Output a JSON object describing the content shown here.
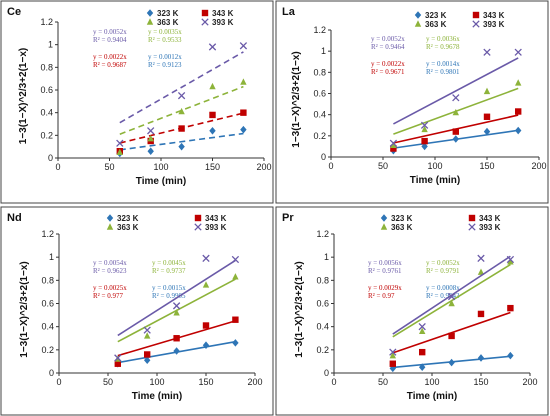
{
  "chart_data": [
    {
      "type": "scatter",
      "title": "Ce",
      "xlabel": "Time (min)",
      "ylabel": "1−3(1−X)^2/3+2(1−x)",
      "xlim": [
        0,
        200
      ],
      "ylim": [
        0,
        1.2
      ],
      "xticks": [
        "0",
        "50",
        "100",
        "150",
        "200"
      ],
      "yticks": [
        "0",
        "0.2",
        "0.4",
        "0.6",
        "0.8",
        "1",
        "1.2"
      ],
      "trendline_style": "dashed",
      "series": [
        {
          "name": "323 K",
          "color": "#2e75b6",
          "marker": "diamond",
          "x": [
            60,
            90,
            120,
            150,
            180
          ],
          "y": [
            0.04,
            0.06,
            0.1,
            0.24,
            0.25
          ],
          "equation": "y = 0.0012x",
          "r2": "R² = 0.9123"
        },
        {
          "name": "343 K",
          "color": "#c00000",
          "marker": "square",
          "x": [
            60,
            90,
            120,
            150,
            180
          ],
          "y": [
            0.06,
            0.15,
            0.26,
            0.38,
            0.4
          ],
          "equation": "y = 0.0022x",
          "r2": "R² = 0.9687"
        },
        {
          "name": "363 K",
          "color": "#8db33a",
          "marker": "triangle",
          "x": [
            60,
            90,
            120,
            150,
            180
          ],
          "y": [
            0.05,
            0.17,
            0.41,
            0.63,
            0.67
          ],
          "equation": "y = 0.0035x",
          "r2": "R² = 0.9533"
        },
        {
          "name": "393 K",
          "color": "#6a5aa8",
          "marker": "x",
          "x": [
            60,
            90,
            120,
            150,
            180
          ],
          "y": [
            0.13,
            0.24,
            0.55,
            0.98,
            0.99
          ],
          "equation": "y = 0.0052x",
          "r2": "R² = 0.9404"
        }
      ]
    },
    {
      "type": "scatter",
      "title": "La",
      "xlabel": "Time (min)",
      "ylabel": "1−3(1−X)^2/3+2(1−x)",
      "xlim": [
        0,
        200
      ],
      "ylim": [
        0,
        1.2
      ],
      "xticks": [
        "0",
        "50",
        "100",
        "150",
        "200"
      ],
      "yticks": [
        "0",
        "0.2",
        "0.4",
        "0.6",
        "0.8",
        "1",
        "1.2"
      ],
      "trendline_style": "solid",
      "series": [
        {
          "name": "323 K",
          "color": "#2e75b6",
          "marker": "diamond",
          "x": [
            60,
            90,
            120,
            150,
            180
          ],
          "y": [
            0.06,
            0.1,
            0.17,
            0.24,
            0.25
          ],
          "equation": "y = 0.0014x",
          "r2": "R² = 0.9801"
        },
        {
          "name": "343 K",
          "color": "#c00000",
          "marker": "square",
          "x": [
            60,
            90,
            120,
            150,
            180
          ],
          "y": [
            0.08,
            0.15,
            0.24,
            0.38,
            0.43
          ],
          "equation": "y = 0.0022x",
          "r2": "R² = 0.9671"
        },
        {
          "name": "363 K",
          "color": "#8db33a",
          "marker": "triangle",
          "x": [
            60,
            90,
            120,
            150,
            180
          ],
          "y": [
            0.11,
            0.26,
            0.42,
            0.62,
            0.7
          ],
          "equation": "y = 0.0036x",
          "r2": "R² = 0.9678"
        },
        {
          "name": "393 K",
          "color": "#6a5aa8",
          "marker": "x",
          "x": [
            60,
            90,
            120,
            150,
            180
          ],
          "y": [
            0.13,
            0.3,
            0.56,
            0.99,
            0.99
          ],
          "equation": "y = 0.0052x",
          "r2": "R² = 0.9464"
        }
      ]
    },
    {
      "type": "scatter",
      "title": "Nd",
      "xlabel": "Time (min)",
      "ylabel": "1−3(1−X)^2/3+2(1−x)",
      "xlim": [
        0,
        200
      ],
      "ylim": [
        0,
        1.2
      ],
      "xticks": [
        "0",
        "50",
        "100",
        "150",
        "200"
      ],
      "yticks": [
        "0",
        "0.2",
        "0.4",
        "0.6",
        "0.8",
        "1",
        "1.2"
      ],
      "trendline_style": "solid",
      "series": [
        {
          "name": "323 K",
          "color": "#2e75b6",
          "marker": "diamond",
          "x": [
            60,
            90,
            120,
            150,
            180
          ],
          "y": [
            0.08,
            0.11,
            0.19,
            0.24,
            0.26
          ],
          "equation": "y = 0.0015x",
          "r2": "R² = 0.9905"
        },
        {
          "name": "343 K",
          "color": "#c00000",
          "marker": "square",
          "x": [
            60,
            90,
            120,
            150,
            180
          ],
          "y": [
            0.08,
            0.16,
            0.3,
            0.41,
            0.46
          ],
          "equation": "y = 0.0025x",
          "r2": "R² = 0.977"
        },
        {
          "name": "363 K",
          "color": "#8db33a",
          "marker": "triangle",
          "x": [
            60,
            90,
            120,
            150,
            180
          ],
          "y": [
            0.12,
            0.32,
            0.52,
            0.76,
            0.83
          ],
          "equation": "y = 0.0045x",
          "r2": "R² = 0.9737"
        },
        {
          "name": "393 K",
          "color": "#6a5aa8",
          "marker": "x",
          "x": [
            60,
            90,
            120,
            150,
            180
          ],
          "y": [
            0.13,
            0.37,
            0.58,
            0.99,
            0.98
          ],
          "equation": "y = 0.0054x",
          "r2": "R² = 0.9623"
        }
      ]
    },
    {
      "type": "scatter",
      "title": "Pr",
      "xlabel": "Time (min)",
      "ylabel": "1−3(1−X)^2/3+2(1−x)",
      "xlim": [
        0,
        200
      ],
      "ylim": [
        0,
        1.2
      ],
      "xticks": [
        "0",
        "50",
        "100",
        "150",
        "200"
      ],
      "yticks": [
        "0",
        "0.2",
        "0.4",
        "0.6",
        "0.8",
        "1",
        "1.2"
      ],
      "trendline_style": "solid",
      "series": [
        {
          "name": "323 K",
          "color": "#2e75b6",
          "marker": "diamond",
          "x": [
            60,
            90,
            120,
            150,
            180
          ],
          "y": [
            0.04,
            0.05,
            0.09,
            0.13,
            0.15
          ],
          "equation": "y = 0.0008x",
          "r2": "R² = 0.9543"
        },
        {
          "name": "343 K",
          "color": "#c00000",
          "marker": "square",
          "x": [
            60,
            90,
            120,
            150,
            180
          ],
          "y": [
            0.08,
            0.18,
            0.32,
            0.51,
            0.56
          ],
          "equation": "y = 0.0029x",
          "r2": "R² = 0.97"
        },
        {
          "name": "363 K",
          "color": "#8db33a",
          "marker": "triangle",
          "x": [
            60,
            90,
            120,
            150,
            180
          ],
          "y": [
            0.15,
            0.36,
            0.6,
            0.87,
            0.96
          ],
          "equation": "y = 0.0052x",
          "r2": "R² = 0.9791"
        },
        {
          "name": "393 K",
          "color": "#6a5aa8",
          "marker": "x",
          "x": [
            60,
            90,
            120,
            150,
            180
          ],
          "y": [
            0.18,
            0.4,
            0.66,
            0.99,
            0.98
          ],
          "equation": "y = 0.0056x",
          "r2": "R² = 0.9761"
        }
      ]
    }
  ]
}
